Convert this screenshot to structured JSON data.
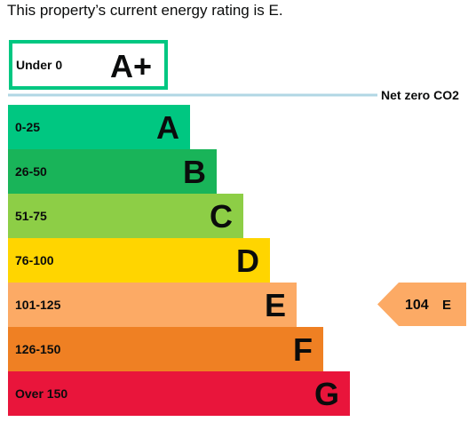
{
  "intro_text": "This property’s current energy rating is E.",
  "chart_data": {
    "type": "bar",
    "title": "",
    "aplus": {
      "range": "Under 0",
      "letter": "A+",
      "color": "#00c781"
    },
    "net_zero_label": "Net zero CO2",
    "net_zero_line_color": "#b1d7e4",
    "categories": [
      "0-25",
      "26-50",
      "51-75",
      "76-100",
      "101-125",
      "126-150",
      "Over 150"
    ],
    "letters": [
      "A",
      "B",
      "C",
      "D",
      "E",
      "F",
      "G"
    ],
    "colors": [
      "#00c781",
      "#19b459",
      "#8dce46",
      "#ffd500",
      "#fcaa65",
      "#ef8023",
      "#e9153b"
    ],
    "values": [
      1,
      2,
      3,
      4,
      5,
      6,
      7
    ],
    "current": {
      "value": "104",
      "band": "E",
      "color": "#fcaa65"
    }
  }
}
